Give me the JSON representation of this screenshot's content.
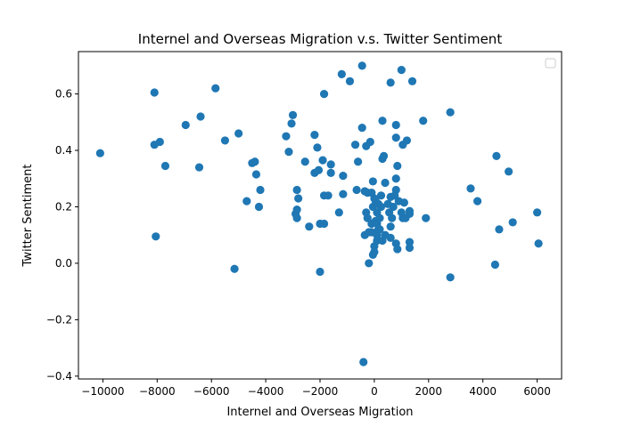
{
  "chart_data": {
    "type": "scatter",
    "title": "Internel and Overseas Migration v.s. Twitter Sentiment",
    "xlabel": "Internel and Overseas Migration",
    "ylabel": "Twitter Sentiment",
    "xlim": [
      -10900,
      6900
    ],
    "ylim": [
      -0.41,
      0.75
    ],
    "xticks": [
      -10000,
      -8000,
      -6000,
      -4000,
      -2000,
      0,
      2000,
      4000,
      6000
    ],
    "yticks": [
      -0.4,
      -0.2,
      0.0,
      0.2,
      0.4,
      0.6
    ],
    "xtick_labels": [
      "−10000",
      "−8000",
      "−6000",
      "−4000",
      "−2000",
      "0",
      "2000",
      "4000",
      "6000"
    ],
    "ytick_labels": [
      "−0.4",
      "−0.2",
      "0.0",
      "0.2",
      "0.4",
      "0.6"
    ],
    "grid": false,
    "legend": "top-right (empty)",
    "color": "#1f77b4",
    "points": [
      [
        -10100,
        0.39
      ],
      [
        -8100,
        0.605
      ],
      [
        -8100,
        0.42
      ],
      [
        -7900,
        0.43
      ],
      [
        -7700,
        0.345
      ],
      [
        -8050,
        0.095
      ],
      [
        -6950,
        0.49
      ],
      [
        -6400,
        0.52
      ],
      [
        -6450,
        0.34
      ],
      [
        -5850,
        0.62
      ],
      [
        -5500,
        0.435
      ],
      [
        -5000,
        0.46
      ],
      [
        -5150,
        -0.02
      ],
      [
        -4700,
        0.22
      ],
      [
        -4500,
        0.355
      ],
      [
        -4400,
        0.36
      ],
      [
        -4350,
        0.315
      ],
      [
        -4200,
        0.26
      ],
      [
        -4250,
        0.2
      ],
      [
        -3250,
        0.45
      ],
      [
        -3150,
        0.395
      ],
      [
        -3000,
        0.525
      ],
      [
        -3050,
        0.495
      ],
      [
        -2850,
        0.26
      ],
      [
        -2800,
        0.23
      ],
      [
        -2900,
        0.175
      ],
      [
        -2850,
        0.16
      ],
      [
        -2850,
        0.19
      ],
      [
        -2550,
        0.36
      ],
      [
        -2400,
        0.13
      ],
      [
        -2200,
        0.455
      ],
      [
        -2100,
        0.41
      ],
      [
        -2200,
        0.32
      ],
      [
        -2050,
        0.33
      ],
      [
        -1900,
        0.365
      ],
      [
        -1850,
        0.24
      ],
      [
        -2000,
        0.14
      ],
      [
        -1850,
        0.14
      ],
      [
        -2000,
        -0.03
      ],
      [
        -1850,
        0.6
      ],
      [
        -1600,
        0.35
      ],
      [
        -1600,
        0.32
      ],
      [
        -1700,
        0.24
      ],
      [
        -1300,
        0.18
      ],
      [
        -1200,
        0.67
      ],
      [
        -1150,
        0.245
      ],
      [
        -1150,
        0.31
      ],
      [
        -900,
        0.645
      ],
      [
        -700,
        0.42
      ],
      [
        -600,
        0.36
      ],
      [
        -650,
        0.26
      ],
      [
        -450,
        0.7
      ],
      [
        -450,
        0.48
      ],
      [
        -400,
        -0.35
      ],
      [
        -300,
        0.415
      ],
      [
        -250,
        0.25
      ],
      [
        -300,
        0.18
      ],
      [
        -250,
        0.16
      ],
      [
        -350,
        0.1
      ],
      [
        -200,
        0.11
      ],
      [
        -150,
        0.43
      ],
      [
        -100,
        0.14
      ],
      [
        -200,
        0.0
      ],
      [
        -100,
        0.25
      ],
      [
        -50,
        0.29
      ],
      [
        -50,
        0.2
      ],
      [
        0,
        0.23
      ],
      [
        -100,
        0.11
      ],
      [
        0,
        0.06
      ],
      [
        0,
        0.04
      ],
      [
        -50,
        0.03
      ],
      [
        50,
        0.15
      ],
      [
        100,
        0.18
      ],
      [
        100,
        0.14
      ],
      [
        100,
        0.1
      ],
      [
        100,
        0.08
      ],
      [
        150,
        0.21
      ],
      [
        200,
        0.12
      ],
      [
        200,
        0.16
      ],
      [
        250,
        0.24
      ],
      [
        300,
        0.505
      ],
      [
        300,
        0.37
      ],
      [
        350,
        0.38
      ],
      [
        300,
        0.08
      ],
      [
        400,
        0.285
      ],
      [
        400,
        0.1
      ],
      [
        500,
        0.21
      ],
      [
        550,
        0.18
      ],
      [
        600,
        0.64
      ],
      [
        600,
        0.235
      ],
      [
        600,
        0.13
      ],
      [
        650,
        0.16
      ],
      [
        700,
        0.2
      ],
      [
        750,
        0.24
      ],
      [
        800,
        0.49
      ],
      [
        800,
        0.445
      ],
      [
        850,
        0.345
      ],
      [
        800,
        0.3
      ],
      [
        800,
        0.26
      ],
      [
        800,
        0.07
      ],
      [
        850,
        0.05
      ],
      [
        900,
        0.22
      ],
      [
        1000,
        0.685
      ],
      [
        1050,
        0.42
      ],
      [
        1000,
        0.18
      ],
      [
        1050,
        0.16
      ],
      [
        1100,
        0.215
      ],
      [
        1150,
        0.16
      ],
      [
        1200,
        0.435
      ],
      [
        1300,
        0.185
      ],
      [
        1300,
        0.175
      ],
      [
        1300,
        0.075
      ],
      [
        1300,
        0.055
      ],
      [
        1400,
        0.645
      ],
      [
        1800,
        0.505
      ],
      [
        1900,
        0.16
      ],
      [
        2800,
        0.535
      ],
      [
        2800,
        -0.05
      ],
      [
        3550,
        0.265
      ],
      [
        3800,
        0.22
      ],
      [
        4500,
        0.38
      ],
      [
        4600,
        0.12
      ],
      [
        4450,
        -0.005
      ],
      [
        4950,
        0.325
      ],
      [
        5100,
        0.145
      ],
      [
        6000,
        0.18
      ],
      [
        6050,
        0.07
      ],
      [
        -350,
        0.255
      ],
      [
        250,
        0.2
      ],
      [
        600,
        0.09
      ],
      [
        150,
        0.12
      ],
      [
        50,
        0.22
      ]
    ]
  }
}
